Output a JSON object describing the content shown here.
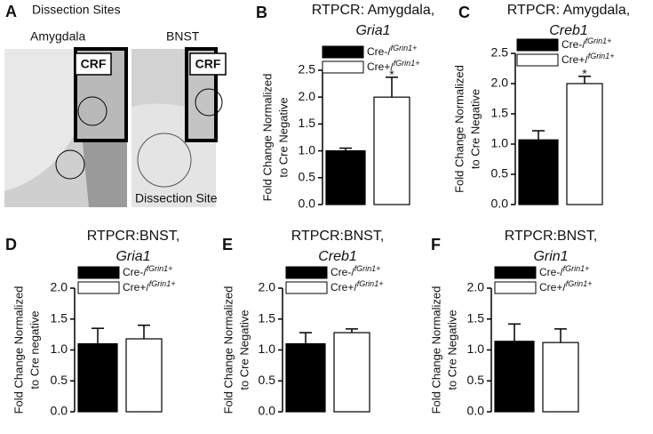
{
  "panel_a": {
    "letter": "A",
    "title": "Dissection Sites",
    "left_label": "Amygdala",
    "right_label": "BNST",
    "box_left": "CRF",
    "box_right": "CRF",
    "site_label": "Dissection Site"
  },
  "chart_data": [
    {
      "type": "bar",
      "panel": "B",
      "title": "RTPCR: Amygdala,",
      "subtitle": "Gria1",
      "ylabel": [
        "Fold Change Normalized",
        "to Cre Negative"
      ],
      "ylim": [
        0,
        2.5
      ],
      "yticks": [
        {
          "value": 0,
          "label": "0.0"
        },
        0.5,
        {
          "value": 1,
          "label": "1.0"
        },
        1.5,
        {
          "value": 2,
          "label": "2.0"
        },
        2.5
      ],
      "series": [
        {
          "name": "Cre-/fGrin1+",
          "color": "#000000",
          "values": [
            1.0
          ],
          "errors": [
            0.05
          ]
        },
        {
          "name": "Cre+/fGrin1+",
          "color": "#ffffff",
          "values": [
            2.0
          ],
          "errors": [
            0.37
          ]
        }
      ],
      "annotation": "*"
    },
    {
      "type": "bar",
      "panel": "C",
      "title": "RTPCR: Amygdala,",
      "subtitle": "Creb1",
      "ylabel": [
        "Fold Change Normalized",
        "to Cre Negative"
      ],
      "ylim": [
        0,
        2.5
      ],
      "yticks": [
        {
          "value": 0,
          "label": "0.0"
        },
        0.5,
        {
          "value": 1,
          "label": "1.0"
        },
        1.5,
        {
          "value": 2,
          "label": "2.0"
        },
        2.5
      ],
      "series": [
        {
          "name": "Cre-/fGrin1+",
          "color": "#000000",
          "values": [
            1.07
          ],
          "errors": [
            0.15
          ]
        },
        {
          "name": "Cre+/fGrin1+",
          "color": "#ffffff",
          "values": [
            2.0
          ],
          "errors": [
            0.12
          ]
        }
      ],
      "annotation": "*"
    },
    {
      "type": "bar",
      "panel": "D",
      "title": "RTPCR:BNST,",
      "subtitle": "Gria1",
      "ylabel": [
        "Fold Change Normalized",
        "to Cre negative"
      ],
      "ylim": [
        0,
        2.0
      ],
      "yticks": [
        {
          "value": 0,
          "label": "0.0"
        },
        0.5,
        {
          "value": 1,
          "label": "1.0"
        },
        1.5,
        {
          "value": 2,
          "label": "2.0"
        }
      ],
      "series": [
        {
          "name": "Cre-/fGrin1+",
          "color": "#000000",
          "values": [
            1.1
          ],
          "errors": [
            0.25
          ]
        },
        {
          "name": "Cre+/fGrin1+",
          "color": "#ffffff",
          "values": [
            1.18
          ],
          "errors": [
            0.22
          ]
        }
      ]
    },
    {
      "type": "bar",
      "panel": "E",
      "title": "RTPCR:BNST,",
      "subtitle": "Creb1",
      "ylabel": [
        "Fold Change Normalized",
        "to Cre Negative"
      ],
      "ylim": [
        0,
        2.0
      ],
      "yticks": [
        {
          "value": 0,
          "label": "0.0"
        },
        0.5,
        {
          "value": 1,
          "label": "1.0"
        },
        1.5,
        {
          "value": 2,
          "label": "2.0"
        }
      ],
      "series": [
        {
          "name": "Cre-/fGrin1+",
          "color": "#000000",
          "values": [
            1.1
          ],
          "errors": [
            0.18
          ]
        },
        {
          "name": "Cre+/fGrin1+",
          "color": "#ffffff",
          "values": [
            1.28
          ],
          "errors": [
            0.06
          ]
        }
      ]
    },
    {
      "type": "bar",
      "panel": "F",
      "title": "RTPCR:BNST,",
      "subtitle": "Grin1",
      "ylabel": [
        "Fold Change Normalized",
        "to Cre Negative"
      ],
      "ylim": [
        0,
        2.0
      ],
      "yticks": [
        {
          "value": 0,
          "label": "0.0"
        },
        0.5,
        {
          "value": 1,
          "label": "1.0"
        },
        1.5,
        {
          "value": 2,
          "label": "2.0"
        }
      ],
      "series": [
        {
          "name": "Cre-/fGrin1+",
          "color": "#000000",
          "values": [
            1.14
          ],
          "errors": [
            0.28
          ]
        },
        {
          "name": "Cre+/fGrin1+",
          "color": "#ffffff",
          "values": [
            1.12
          ],
          "errors": [
            0.22
          ]
        }
      ]
    }
  ]
}
